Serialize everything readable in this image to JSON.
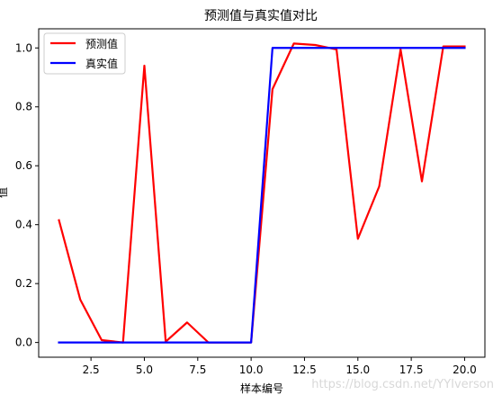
{
  "chart_data": {
    "type": "line",
    "title": "预测值与真实值对比",
    "xlabel": "样本编号",
    "ylabel": "值",
    "xlim": [
      0.05,
      20.95
    ],
    "ylim": [
      -0.05,
      1.065
    ],
    "xticks": [
      2.5,
      5.0,
      7.5,
      10.0,
      12.5,
      15.0,
      17.5,
      20.0
    ],
    "xtick_labels": [
      "2.5",
      "5.0",
      "7.5",
      "10.0",
      "12.5",
      "15.0",
      "17.5",
      "20.0"
    ],
    "yticks": [
      0.0,
      0.2,
      0.4,
      0.6,
      0.8,
      1.0
    ],
    "ytick_labels": [
      "0.0",
      "0.2",
      "0.4",
      "0.6",
      "0.8",
      "1.0"
    ],
    "grid": false,
    "legend_position": "upper-left",
    "x": [
      1,
      2,
      3,
      4,
      5,
      6,
      7,
      8,
      9,
      10,
      11,
      12,
      13,
      14,
      15,
      16,
      17,
      18,
      19,
      20
    ],
    "series": [
      {
        "name": "预测值",
        "color": "#ff0000",
        "values": [
          0.415,
          0.145,
          0.008,
          0.0,
          0.94,
          0.003,
          0.068,
          0.0,
          0.0,
          0.0,
          0.86,
          1.015,
          1.01,
          0.995,
          0.352,
          0.53,
          0.995,
          0.547,
          1.005,
          1.005
        ]
      },
      {
        "name": "真实值",
        "color": "#0000ff",
        "values": [
          0,
          0,
          0,
          0,
          0,
          0,
          0,
          0,
          0,
          0,
          1,
          1,
          1,
          1,
          1,
          1,
          1,
          1,
          1,
          1
        ]
      }
    ]
  },
  "watermark": "https://blog.csdn.net/YYIverson"
}
